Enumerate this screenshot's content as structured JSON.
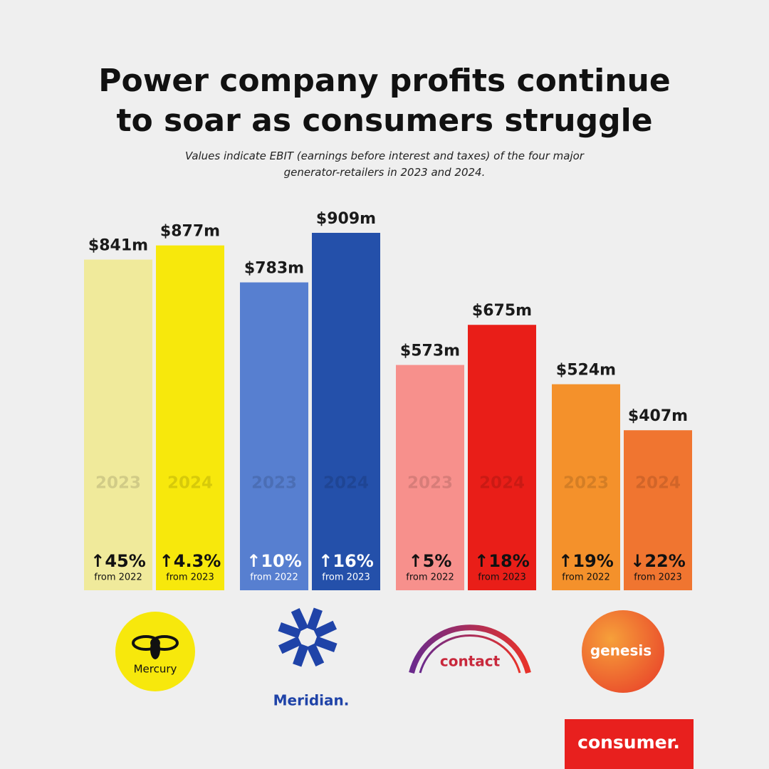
{
  "chart_data": {
    "type": "bar",
    "title": "Power company profits continue to soar as consumers struggle",
    "subtitle": "Values indicate EBIT (earnings before interest and taxes) of the four major generator-retailers in 2023 and 2024.",
    "categories": [
      "Mercury",
      "Meridian.",
      "contact",
      "genesis"
    ],
    "label_colors": [
      "#111111",
      "#ffffff",
      "#111111",
      "#111111"
    ],
    "series": [
      {
        "name": "2023",
        "colors": [
          "#f0ea9b",
          "#577fd0",
          "#f7908c",
          "#f4912b"
        ],
        "values": [
          841,
          783,
          573,
          524
        ],
        "value_labels": [
          "$841m",
          "$783m",
          "$573m",
          "$524m"
        ],
        "change_labels": [
          "↑45%",
          "↑10%",
          "↑5%",
          "↑19%"
        ],
        "change_notes": [
          "from 2022",
          "from 2022",
          "from 2022",
          "from 2022"
        ]
      },
      {
        "name": "2024",
        "colors": [
          "#f7e80c",
          "#2450aa",
          "#e91e18",
          "#f07530"
        ],
        "values": [
          877,
          909,
          675,
          407
        ],
        "value_labels": [
          "$877m",
          "$909m",
          "$675m",
          "$407m"
        ],
        "change_labels": [
          "↑4.3%",
          "↑16%",
          "↑18%",
          "↓22%"
        ],
        "change_notes": [
          "from 2023",
          "from 2023",
          "from 2023",
          "from 2023"
        ]
      }
    ]
  },
  "brand": "consumer."
}
